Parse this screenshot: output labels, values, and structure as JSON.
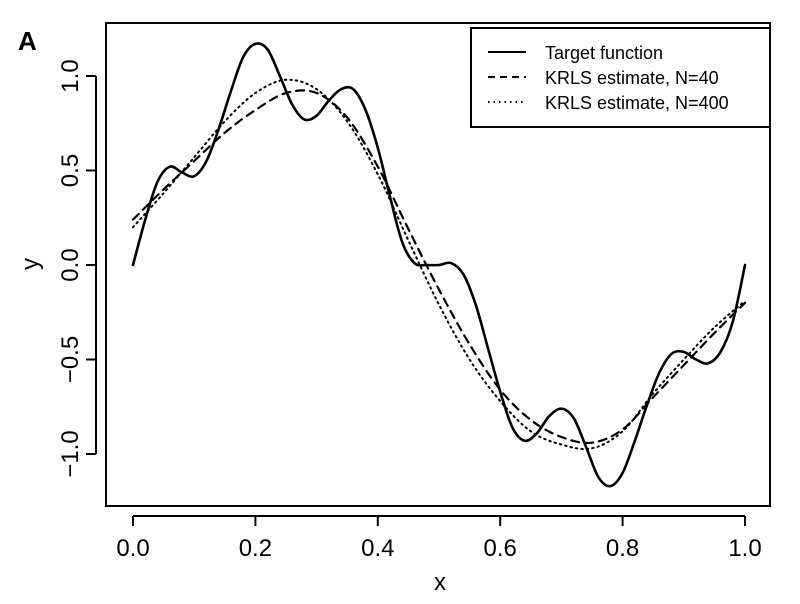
{
  "panel_label": "A",
  "chart_data": {
    "type": "line",
    "xlabel": "x",
    "ylabel": "y",
    "xlim": [
      0.0,
      1.0
    ],
    "ylim": [
      -1.25,
      1.25
    ],
    "x_ticks": [
      0.0,
      0.2,
      0.4,
      0.6,
      0.8,
      1.0
    ],
    "x_tick_labels": [
      "0.0",
      "0.2",
      "0.4",
      "0.6",
      "0.8",
      "1.0"
    ],
    "y_ticks": [
      -1.0,
      -0.5,
      0.0,
      0.5,
      1.0
    ],
    "y_tick_labels": [
      "−1.0",
      "−0.5",
      "0.0",
      "0.5",
      "1.0"
    ],
    "grid": false,
    "legend_position": "top-right",
    "series": [
      {
        "name": "Target function",
        "style": "solid",
        "x": [
          0.0,
          0.02,
          0.04,
          0.06,
          0.08,
          0.1,
          0.12,
          0.14,
          0.16,
          0.18,
          0.2,
          0.22,
          0.24,
          0.26,
          0.28,
          0.3,
          0.32,
          0.34,
          0.36,
          0.38,
          0.4,
          0.42,
          0.44,
          0.46,
          0.48,
          0.5,
          0.52,
          0.54,
          0.56,
          0.58,
          0.6,
          0.62,
          0.64,
          0.66,
          0.68,
          0.7,
          0.72,
          0.74,
          0.76,
          0.78,
          0.8,
          0.82,
          0.84,
          0.86,
          0.88,
          0.9,
          0.92,
          0.94,
          0.96,
          0.98,
          1.0
        ],
        "y": [
          0.0,
          0.24,
          0.44,
          0.52,
          0.49,
          0.47,
          0.55,
          0.72,
          0.92,
          1.1,
          1.17,
          1.14,
          1.0,
          0.85,
          0.77,
          0.79,
          0.87,
          0.93,
          0.93,
          0.82,
          0.62,
          0.36,
          0.12,
          0.01,
          0.0,
          0.0,
          0.01,
          -0.05,
          -0.21,
          -0.44,
          -0.67,
          -0.86,
          -0.93,
          -0.89,
          -0.8,
          -0.76,
          -0.81,
          -0.96,
          -1.12,
          -1.17,
          -1.1,
          -0.93,
          -0.74,
          -0.57,
          -0.47,
          -0.46,
          -0.5,
          -0.52,
          -0.46,
          -0.3,
          0.0
        ]
      },
      {
        "name": "KRLS estimate, N=40",
        "style": "dashed",
        "x": [
          0.0,
          0.05,
          0.1,
          0.15,
          0.2,
          0.25,
          0.3,
          0.35,
          0.4,
          0.45,
          0.5,
          0.55,
          0.6,
          0.65,
          0.7,
          0.75,
          0.8,
          0.85,
          0.9,
          0.95,
          1.0
        ],
        "y": [
          0.24,
          0.4,
          0.55,
          0.7,
          0.82,
          0.91,
          0.91,
          0.78,
          0.52,
          0.19,
          -0.13,
          -0.42,
          -0.66,
          -0.82,
          -0.91,
          -0.94,
          -0.87,
          -0.7,
          -0.53,
          -0.36,
          -0.2
        ]
      },
      {
        "name": "KRLS estimate, N=400",
        "style": "dotted",
        "x": [
          0.0,
          0.05,
          0.1,
          0.15,
          0.2,
          0.25,
          0.3,
          0.35,
          0.4,
          0.45,
          0.5,
          0.55,
          0.6,
          0.65,
          0.7,
          0.75,
          0.8,
          0.85,
          0.9,
          0.95,
          1.0
        ],
        "y": [
          0.2,
          0.38,
          0.57,
          0.76,
          0.91,
          0.98,
          0.93,
          0.76,
          0.48,
          0.13,
          -0.21,
          -0.5,
          -0.72,
          -0.88,
          -0.95,
          -0.97,
          -0.88,
          -0.68,
          -0.5,
          -0.33,
          -0.19
        ]
      }
    ]
  }
}
